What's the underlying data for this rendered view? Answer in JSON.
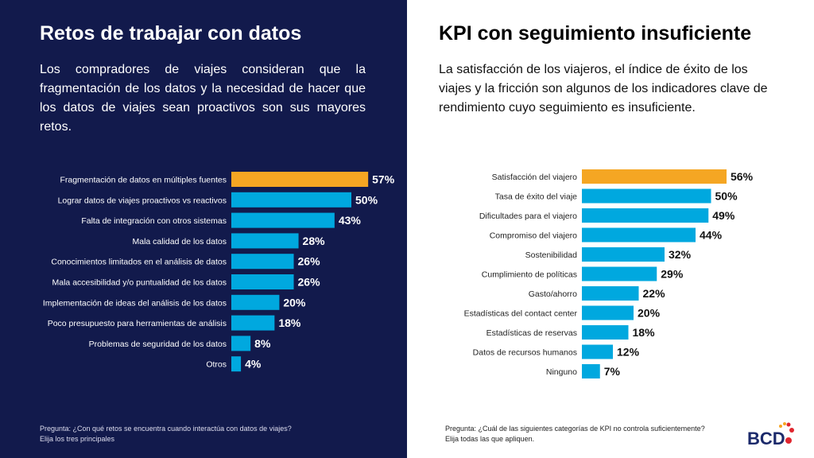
{
  "chart_data": [
    {
      "type": "bar",
      "orientation": "horizontal",
      "title": "Retos de trabajar con datos",
      "subtitle": "Los compradores de viajes consideran que la fragmentación de los datos y la necesidad de hacer que los datos de viajes sean proactivos son sus mayores retos.",
      "categories": [
        "Fragmentación de datos en múltiples fuentes",
        "Lograr datos de viajes proactivos vs reactivos",
        "Falta de integración con otros sistemas",
        "Mala calidad de los datos",
        "Conocimientos limitados en el análisis de datos",
        "Mala accesibilidad y/o puntualidad de los datos",
        "Implementación de ideas del análisis de los datos",
        "Poco presupuesto para herramientas de análisis",
        "Problemas de seguridad de los datos",
        "Otros"
      ],
      "values": [
        57,
        50,
        43,
        28,
        26,
        26,
        20,
        18,
        8,
        4
      ],
      "unit": "%",
      "highlight_index": 0,
      "note": [
        "Pregunta: ¿Con qué retos se encuentra cuando interactúa con datos de viajes?",
        "Elija los tres principales"
      ]
    },
    {
      "type": "bar",
      "orientation": "horizontal",
      "title": "KPI con seguimiento insuficiente",
      "subtitle": "La satisfacción de los viajeros, el índice de éxito de los viajes y la fricción son algunos de los indicadores clave de rendimiento cuyo seguimiento es insuficiente.",
      "categories": [
        "Satisfacción del viajero",
        "Tasa de éxito del viaje",
        "Dificultades para el viajero",
        "Compromiso del viajero",
        "Sostenibilidad",
        "Cumplimiento de políticas",
        "Gasto/ahorro",
        "Estadísticas del contact center",
        "Estadísticas de reservas",
        "Datos de recursos humanos",
        "Ninguno"
      ],
      "values": [
        56,
        50,
        49,
        44,
        32,
        29,
        22,
        20,
        18,
        12,
        7
      ],
      "unit": "%",
      "highlight_index": 0,
      "note": [
        "Pregunta: ¿Cuál de las siguientes categorías de KPI no controla suficientemente?",
        "Elija todas las que apliquen."
      ]
    }
  ],
  "colors": {
    "highlight": "#f5a623",
    "bar": "#00a8df",
    "left_bg": "#121a4c",
    "logo_text": "#1c2a6b",
    "logo_dots": "#e0262f"
  },
  "logo": "BCD"
}
